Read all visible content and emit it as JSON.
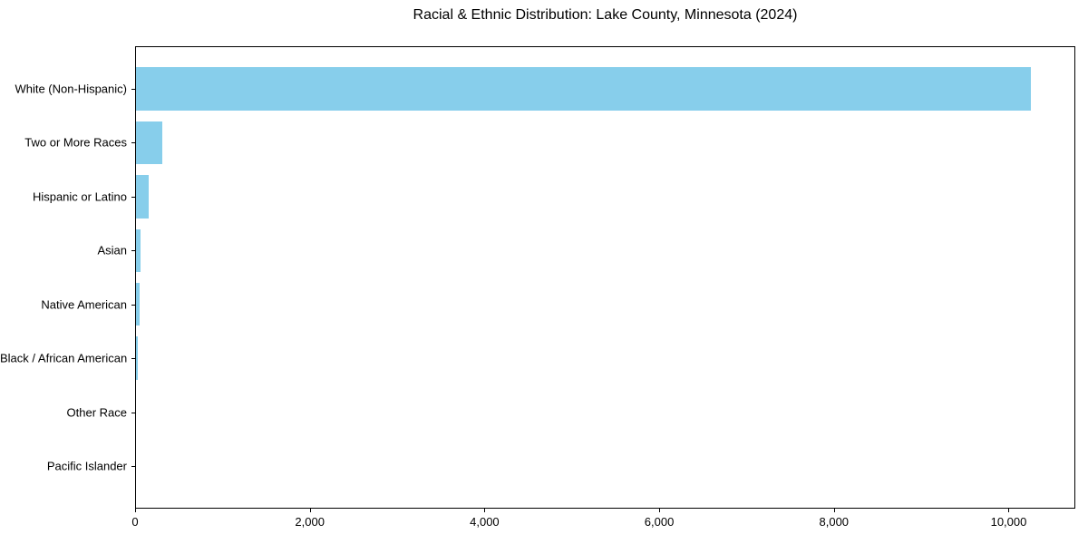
{
  "chart_data": {
    "type": "bar",
    "orientation": "horizontal",
    "title": "Racial & Ethnic Distribution: Lake County, Minnesota (2024)",
    "categories": [
      "White (Non-Hispanic)",
      "Two or More Races",
      "Hispanic or Latino",
      "Asian",
      "Native American",
      "Black / African American",
      "Other Race",
      "Pacific Islander"
    ],
    "values": [
      10250,
      310,
      155,
      60,
      55,
      35,
      10,
      5
    ],
    "xlabel": "",
    "ylabel": "",
    "xlim": [
      0,
      10763
    ],
    "xticks": {
      "values": [
        0,
        2000,
        4000,
        6000,
        8000,
        10000
      ],
      "labels": [
        "0",
        "2,000",
        "4,000",
        "6,000",
        "8,000",
        "10,000"
      ]
    },
    "bar_color": "#87CEEB",
    "background_color": "#FFFFFF",
    "axis_color": "#000000",
    "bar_height_fraction": 0.8,
    "grid": false,
    "legend": "none"
  }
}
